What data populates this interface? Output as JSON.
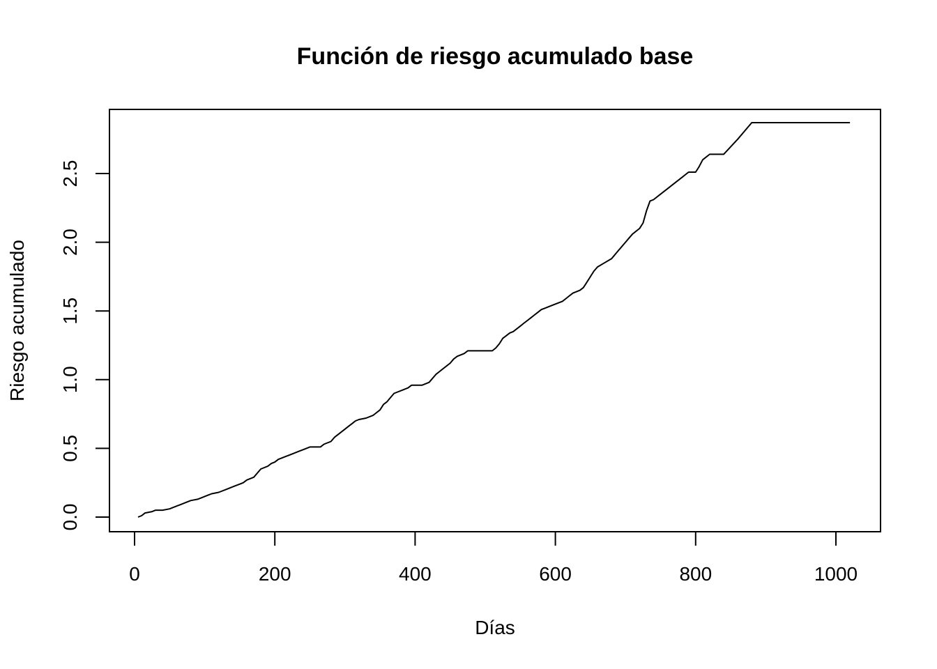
{
  "chart_data": {
    "type": "line",
    "title": "Función de riesgo acumulado base",
    "xlabel": "Días",
    "ylabel": "Riesgo acumulado",
    "xlim": [
      0,
      1020
    ],
    "ylim": [
      0,
      2.85
    ],
    "xticks": [
      0,
      200,
      400,
      600,
      800,
      1000
    ],
    "xtick_labels": [
      "0",
      "200",
      "400",
      "600",
      "800",
      "1000"
    ],
    "yticks": [
      0.0,
      0.5,
      1.0,
      1.5,
      2.0,
      2.5
    ],
    "ytick_labels": [
      "0.0",
      "0.5",
      "1.0",
      "1.5",
      "2.0",
      "2.5"
    ],
    "grid": false,
    "legend": "none",
    "line_color": "#000000",
    "series": [
      {
        "x": [
          5,
          10,
          15,
          25,
          30,
          40,
          50,
          55,
          60,
          65,
          70,
          75,
          80,
          90,
          95,
          100,
          105,
          110,
          120,
          125,
          130,
          135,
          140,
          145,
          150,
          155,
          160,
          165,
          170,
          175,
          180,
          185,
          190,
          195,
          200,
          205,
          210,
          215,
          220,
          225,
          230,
          235,
          240,
          245,
          250,
          255,
          260,
          265,
          270,
          275,
          280,
          285,
          290,
          295,
          300,
          305,
          310,
          315,
          320,
          330,
          340,
          345,
          350,
          355,
          360,
          365,
          370,
          375,
          380,
          385,
          390,
          395,
          400,
          410,
          420,
          425,
          430,
          435,
          440,
          445,
          450,
          455,
          460,
          465,
          470,
          475,
          480,
          490,
          500,
          510,
          515,
          520,
          525,
          530,
          535,
          540,
          545,
          550,
          555,
          560,
          565,
          570,
          575,
          580,
          585,
          590,
          600,
          610,
          615,
          620,
          625,
          630,
          635,
          640,
          645,
          650,
          655,
          660,
          670,
          680,
          690,
          700,
          705,
          710,
          720,
          725,
          730,
          735,
          740,
          750,
          760,
          770,
          780,
          790,
          800,
          805,
          810,
          820,
          830,
          840,
          860,
          880,
          900,
          920,
          940,
          960,
          980,
          1000,
          1020
        ],
        "y": [
          0.0,
          0.01,
          0.03,
          0.04,
          0.05,
          0.05,
          0.06,
          0.07,
          0.08,
          0.09,
          0.1,
          0.11,
          0.12,
          0.13,
          0.14,
          0.15,
          0.16,
          0.17,
          0.18,
          0.19,
          0.2,
          0.21,
          0.22,
          0.23,
          0.24,
          0.25,
          0.27,
          0.28,
          0.29,
          0.32,
          0.35,
          0.36,
          0.37,
          0.39,
          0.4,
          0.42,
          0.43,
          0.44,
          0.45,
          0.46,
          0.47,
          0.48,
          0.49,
          0.5,
          0.51,
          0.51,
          0.51,
          0.51,
          0.53,
          0.54,
          0.55,
          0.58,
          0.6,
          0.62,
          0.64,
          0.66,
          0.68,
          0.7,
          0.71,
          0.72,
          0.74,
          0.76,
          0.78,
          0.82,
          0.84,
          0.87,
          0.9,
          0.91,
          0.92,
          0.93,
          0.94,
          0.96,
          0.96,
          0.96,
          0.98,
          1.01,
          1.04,
          1.06,
          1.08,
          1.1,
          1.12,
          1.15,
          1.17,
          1.18,
          1.19,
          1.21,
          1.21,
          1.21,
          1.21,
          1.21,
          1.23,
          1.26,
          1.3,
          1.32,
          1.34,
          1.35,
          1.37,
          1.39,
          1.41,
          1.43,
          1.45,
          1.47,
          1.49,
          1.51,
          1.52,
          1.53,
          1.55,
          1.57,
          1.59,
          1.61,
          1.63,
          1.64,
          1.65,
          1.67,
          1.71,
          1.75,
          1.79,
          1.82,
          1.85,
          1.88,
          1.94,
          2.0,
          2.03,
          2.06,
          2.1,
          2.14,
          2.23,
          2.3,
          2.31,
          2.35,
          2.39,
          2.43,
          2.47,
          2.51,
          2.51,
          2.55,
          2.6,
          2.64,
          2.64,
          2.64,
          2.75,
          2.87,
          2.87,
          2.87,
          2.87,
          2.87,
          2.87,
          2.87,
          2.87
        ]
      }
    ]
  }
}
